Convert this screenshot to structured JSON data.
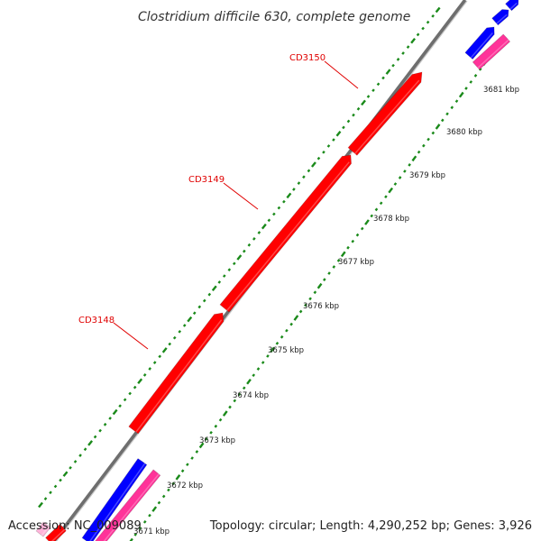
{
  "title": "Clostridium difficile 630, complete genome",
  "footer": {
    "accession": "Accession: NC_009089",
    "summary": "Topology: circular; Length: 4,290,252 bp; Genes: 3,926"
  },
  "colors": {
    "backbone": "#8a8a8a",
    "feature_red": "#ff0000",
    "feature_blue": "#0000ff",
    "feature_pink": "#ff3399",
    "tick_green": "#1a8a1a",
    "label_red": "#e00000"
  },
  "scale": {
    "unit": "kbp",
    "ticks": [
      {
        "kbp": 3671,
        "label": "3671 kbp"
      },
      {
        "kbp": 3672,
        "label": "3672 kbp"
      },
      {
        "kbp": 3673,
        "label": "3673 kbp"
      },
      {
        "kbp": 3674,
        "label": "3674 kbp"
      },
      {
        "kbp": 3675,
        "label": "3675 kbp"
      },
      {
        "kbp": 3676,
        "label": "3676 kbp"
      },
      {
        "kbp": 3677,
        "label": "3677 kbp"
      },
      {
        "kbp": 3678,
        "label": "3678 kbp"
      },
      {
        "kbp": 3679,
        "label": "3679 kbp"
      },
      {
        "kbp": 3680,
        "label": "3680 kbp"
      },
      {
        "kbp": 3681,
        "label": "3681 kbp"
      }
    ]
  },
  "genes": [
    {
      "id": "CD3148",
      "label": "CD3148",
      "strand": "+"
    },
    {
      "id": "CD3149",
      "label": "CD3149",
      "strand": "+"
    },
    {
      "id": "CD3150",
      "label": "CD3150",
      "strand": "+"
    }
  ]
}
